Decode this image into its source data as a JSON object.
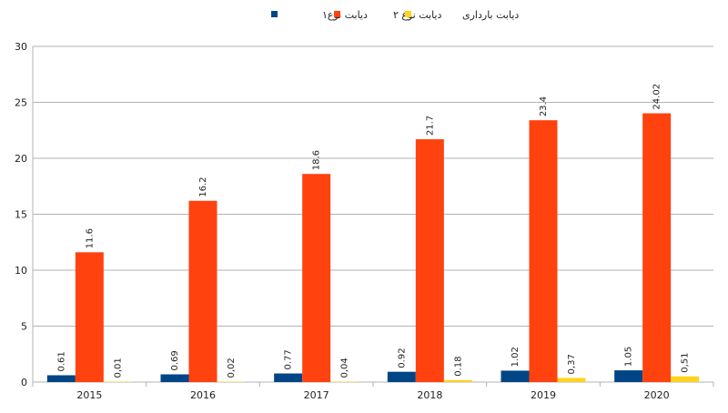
{
  "chart_data": {
    "type": "bar",
    "categories": [
      "2015",
      "2016",
      "2017",
      "2018",
      "2019",
      "2020"
    ],
    "series": [
      {
        "name": "دیابت نوع۱",
        "color": "#004586",
        "values": [
          0.61,
          0.69,
          0.77,
          0.92,
          1.02,
          1.05
        ],
        "labels": [
          "0.61",
          "0.69",
          "0.77",
          "0.92",
          "1.02",
          "1.05"
        ]
      },
      {
        "name": "دیابت نوع ۲",
        "color": "#ff420e",
        "values": [
          11.6,
          16.2,
          18.6,
          21.7,
          23.4,
          24.02
        ],
        "labels": [
          "11.6",
          "16.2",
          "18.6",
          "21.7",
          "23.4",
          "24.02"
        ]
      },
      {
        "name": "دیابت بارداری",
        "color": "#ffd320",
        "values": [
          0.01,
          0.02,
          0.04,
          0.18,
          0.37,
          0.51
        ],
        "labels": [
          "0,01",
          "0,02",
          "0,04",
          "0.18",
          "0,37",
          "0,51"
        ]
      }
    ],
    "ylim": [
      0,
      30
    ],
    "yticks": [
      "0",
      "5",
      "10",
      "15",
      "20",
      "25",
      "30"
    ],
    "grid": true,
    "legend_position": "top-center",
    "title": "",
    "xlabel": "",
    "ylabel": ""
  }
}
